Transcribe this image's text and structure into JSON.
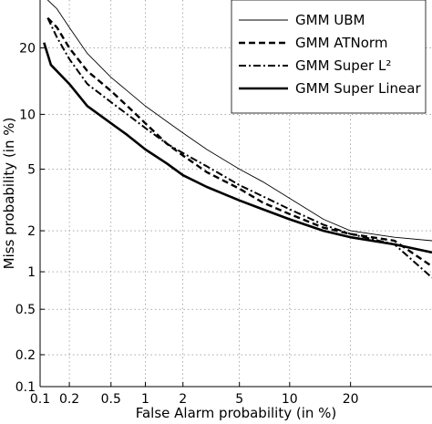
{
  "chart_data": {
    "type": "line",
    "title": "",
    "xlabel": "False Alarm probability (in %)",
    "ylabel": "Miss probability (in %)",
    "xscale": "probit",
    "yscale": "probit",
    "xlim": [
      0.1,
      40
    ],
    "ylim": [
      0.1,
      30
    ],
    "xticks": [
      0.1,
      0.2,
      0.5,
      1,
      2,
      5,
      10,
      20
    ],
    "xtick_labels": [
      "0.1",
      "0.2",
      "0.5",
      "1",
      "2",
      "5",
      "10",
      "20"
    ],
    "yticks": [
      0.1,
      0.2,
      0.5,
      1,
      2,
      5,
      10,
      20
    ],
    "ytick_labels": [
      "0.1",
      "0.2",
      "0.5",
      "1",
      "2",
      "5",
      "10",
      "20"
    ],
    "grid": true,
    "legend_position": "top-right",
    "series": [
      {
        "name": "GMM UBM",
        "line_style": "thin-solid",
        "x": [
          0.12,
          0.15,
          0.2,
          0.3,
          0.5,
          0.7,
          1,
          1.5,
          2,
          3,
          5,
          7,
          10,
          15,
          20,
          30,
          40
        ],
        "y": [
          30,
          28,
          24,
          19,
          15,
          13,
          11,
          9.2,
          8,
          6.5,
          5,
          4.2,
          3.3,
          2.4,
          2.0,
          1.8,
          1.7
        ]
      },
      {
        "name": "GMM ATNorm",
        "line_style": "dashed",
        "x": [
          0.12,
          0.15,
          0.2,
          0.3,
          0.5,
          0.7,
          1,
          1.5,
          2,
          3,
          5,
          7,
          10,
          15,
          20,
          30,
          40
        ],
        "y": [
          26,
          24,
          20,
          16,
          13,
          11,
          9,
          7,
          6,
          4.8,
          3.8,
          3.1,
          2.6,
          2.1,
          1.9,
          1.7,
          1.1
        ]
      },
      {
        "name": "GMM Super L²",
        "line_style": "dash-dot",
        "x": [
          0.12,
          0.15,
          0.2,
          0.3,
          0.5,
          0.7,
          1,
          1.5,
          2,
          3,
          5,
          7,
          10,
          15,
          20,
          30,
          40
        ],
        "y": [
          26,
          22,
          18,
          14,
          11.5,
          10,
          8.5,
          7,
          6.2,
          5.2,
          4,
          3.4,
          2.8,
          2.2,
          1.9,
          1.6,
          0.9
        ]
      },
      {
        "name": "GMM Super Linear",
        "line_style": "thick-solid",
        "x": [
          0.11,
          0.13,
          0.2,
          0.3,
          0.5,
          0.7,
          1,
          1.5,
          2,
          3,
          5,
          7,
          10,
          15,
          20,
          30,
          40
        ],
        "y": [
          21,
          17,
          14,
          11,
          9,
          7.8,
          6.5,
          5.4,
          4.6,
          3.9,
          3.2,
          2.8,
          2.4,
          2.0,
          1.8,
          1.6,
          1.4
        ]
      }
    ]
  }
}
